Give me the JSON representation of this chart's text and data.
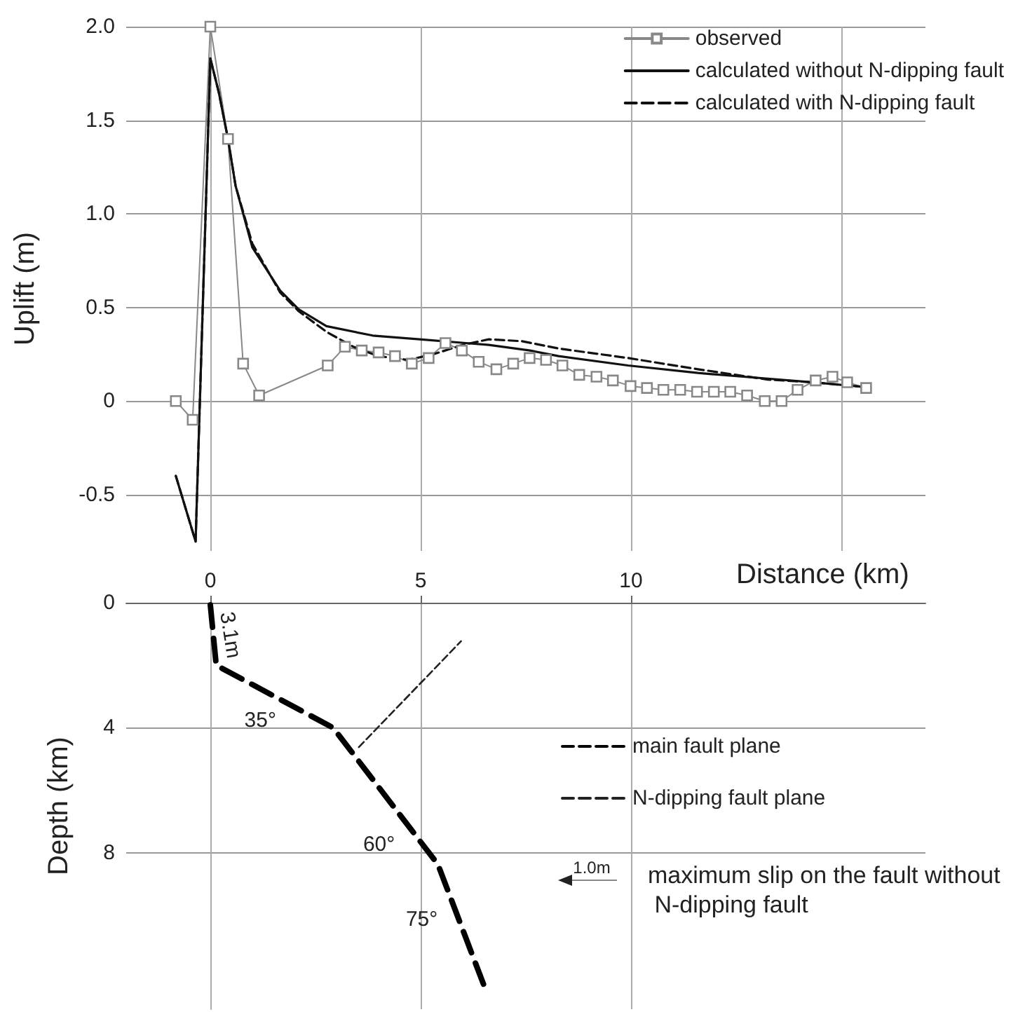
{
  "chart_data": [
    {
      "type": "line",
      "ylabel": "Uplift (m)",
      "xlim": [
        -2,
        17
      ],
      "ylim": [
        -0.8,
        2.0
      ],
      "xticks": [
        0,
        5,
        10,
        15
      ],
      "yticks": [
        -0.5,
        0,
        0.5,
        {
          "value": 1,
          "label": "1.0"
        },
        1.5,
        {
          "value": 2,
          "label": "2.0"
        }
      ],
      "tick_labels": "y",
      "grid": true,
      "legend": "top right",
      "series": [
        {
          "name": "observed",
          "color": "#888888",
          "marker": "square",
          "line_style": "solid",
          "x": [
            -0.82,
            -0.42,
            0,
            0.42,
            0.78,
            1.16,
            2.79,
            3.2,
            3.6,
            4.0,
            4.39,
            4.79,
            5.19,
            5.59,
            5.98,
            6.38,
            6.8,
            7.2,
            7.59,
            7.98,
            8.37,
            8.77,
            9.18,
            9.57,
            9.99,
            10.38,
            10.77,
            11.17,
            11.57,
            11.97,
            12.36,
            12.76,
            13.18,
            13.58,
            13.96,
            14.39,
            14.79,
            15.14,
            15.59
          ],
          "values": [
            0,
            -0.1,
            2.0,
            1.4,
            0.2,
            0.03,
            0.19,
            0.29,
            0.27,
            0.26,
            0.24,
            0.2,
            0.23,
            0.31,
            0.27,
            0.21,
            0.17,
            0.2,
            0.23,
            0.22,
            0.19,
            0.14,
            0.13,
            0.11,
            0.08,
            0.07,
            0.06,
            0.06,
            0.05,
            0.05,
            0.05,
            0.03,
            0.0,
            0.0,
            0.06,
            0.11,
            0.13,
            0.1,
            0.07
          ]
        },
        {
          "name": "calculated without N-dipping fault",
          "color": "#111111",
          "marker": "none",
          "line_style": "solid",
          "x": [
            -0.82,
            -0.35,
            0,
            0.2,
            0.42,
            0.6,
            1.0,
            1.66,
            2.1,
            2.76,
            3.86,
            4.97,
            6.07,
            6.62,
            7.6,
            8.28,
            9.93,
            11.59,
            13.25,
            14.35,
            15.56
          ],
          "values": [
            -0.4,
            -0.75,
            1.83,
            1.65,
            1.4,
            1.15,
            0.82,
            0.59,
            0.49,
            0.4,
            0.35,
            0.33,
            0.31,
            0.3,
            0.27,
            0.24,
            0.19,
            0.15,
            0.12,
            0.1,
            0.075
          ]
        },
        {
          "name": "calculated with N-dipping fault",
          "color": "#111111",
          "marker": "none",
          "line_style": "dashed",
          "x": [
            -0.82,
            -0.35,
            0,
            0.2,
            0.42,
            0.6,
            1.0,
            1.66,
            2.1,
            2.76,
            3.4,
            4.0,
            4.7,
            5.3,
            6.0,
            6.62,
            7.4,
            8.3,
            9.93,
            11.59,
            13.25,
            14.35,
            15.56
          ],
          "values": [
            -0.4,
            -0.75,
            1.83,
            1.65,
            1.4,
            1.15,
            0.84,
            0.58,
            0.48,
            0.37,
            0.29,
            0.24,
            0.22,
            0.25,
            0.3,
            0.33,
            0.32,
            0.28,
            0.23,
            0.17,
            0.115,
            0.1,
            0.075
          ]
        }
      ]
    },
    {
      "type": "line",
      "xlabel": "Distance (km)",
      "ylabel": "Depth (km)",
      "xlim": [
        -2,
        17
      ],
      "xticks": [
        0,
        5,
        10
      ],
      "ylim": [
        13,
        0
      ],
      "yticks": [
        0,
        4,
        8
      ],
      "grid": true,
      "legend": "right",
      "marker": "none",
      "line_style": "dashed",
      "series": [
        {
          "name": "main fault plane",
          "color": "#000000",
          "x": [
            0,
            0.14,
            2.92,
            5.41,
            6.51
          ],
          "values": [
            0.07,
            2.0,
            4.0,
            8.37,
            12.26
          ]
        },
        {
          "name": "N-dipping fault plane",
          "color": "#222222",
          "x": [
            3.53,
            5.96
          ],
          "values": [
            4.62,
            1.23
          ]
        }
      ],
      "annotations": [
        "3.1m",
        "35°",
        "60°",
        "75°",
        "1.0m",
        "maximum slip on the fault without N-dipping fault"
      ]
    }
  ]
}
